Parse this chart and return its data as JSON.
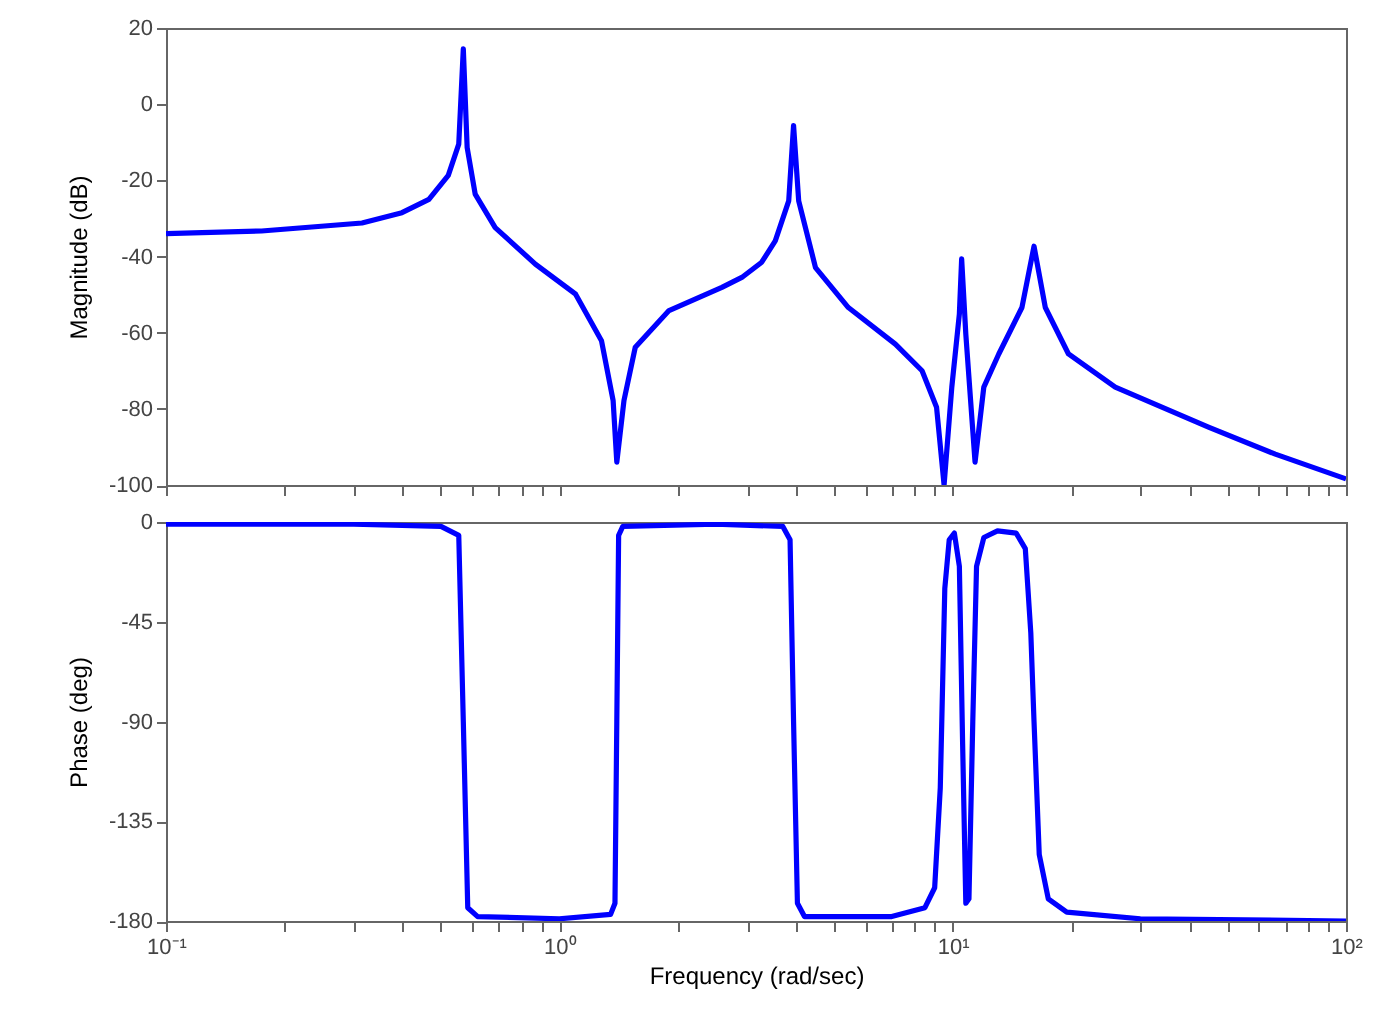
{
  "chart_data": [
    {
      "type": "line",
      "ylabel": "Magnitude (dB)",
      "color": "#0000ff",
      "log": "x",
      "tick_labels": "y",
      "xlim": [
        0.1,
        100
      ],
      "ylim": [
        -100,
        20
      ],
      "yticks": [
        -100,
        -80,
        -60,
        -40,
        -20,
        0,
        20
      ],
      "xticks": [
        {
          "value": 0.1,
          "label": null
        },
        {
          "value": 0.2,
          "label": null
        },
        {
          "value": 0.3,
          "label": null
        },
        {
          "value": 0.4,
          "label": null
        },
        {
          "value": 0.5,
          "label": null
        },
        {
          "value": 0.6,
          "label": null
        },
        {
          "value": 0.7,
          "label": null
        },
        {
          "value": 0.8,
          "label": null
        },
        {
          "value": 0.9,
          "label": null
        },
        {
          "value": 1,
          "label": null
        },
        {
          "value": 2,
          "label": null
        },
        {
          "value": 3,
          "label": null
        },
        {
          "value": 4,
          "label": null
        },
        {
          "value": 5,
          "label": null
        },
        {
          "value": 6,
          "label": null
        },
        {
          "value": 7,
          "label": null
        },
        {
          "value": 8,
          "label": null
        },
        {
          "value": 9,
          "label": null
        },
        {
          "value": 10,
          "label": null
        },
        {
          "value": 20,
          "label": null
        },
        {
          "value": 30,
          "label": null
        },
        {
          "value": 40,
          "label": null
        },
        {
          "value": 50,
          "label": null
        },
        {
          "value": 60,
          "label": null
        },
        {
          "value": 70,
          "label": null
        },
        {
          "value": 80,
          "label": null
        },
        {
          "value": 90,
          "label": null
        },
        {
          "value": 100,
          "label": null
        }
      ],
      "x": [
        0.1,
        0.175,
        0.315,
        0.398,
        0.466,
        0.522,
        0.555,
        0.57,
        0.583,
        0.611,
        0.687,
        0.869,
        1.1,
        1.28,
        1.37,
        1.4,
        1.46,
        1.56,
        1.9,
        2.59,
        2.91,
        3.27,
        3.54,
        3.83,
        3.94,
        4.06,
        4.48,
        5.43,
        7.15,
        8.36,
        9.1,
        9.51,
        9.95,
        10.4,
        10.54,
        10.8,
        11.4,
        12.0,
        13.1,
        15.0,
        16.1,
        17.2,
        19.7,
        25.9,
        44.7,
        66.1,
        100
      ],
      "values": [
        -34,
        -33.3,
        -31.2,
        -28.5,
        -25,
        -18.7,
        -10.5,
        14.5,
        -11.4,
        -23.6,
        -32.4,
        -42,
        -49.9,
        -62.1,
        -77.8,
        -94,
        -77.8,
        -63.8,
        -54.2,
        -48.1,
        -45.5,
        -41.5,
        -35.9,
        -25.4,
        -5.6,
        -25.4,
        -42.9,
        -53.4,
        -63,
        -70,
        -79.6,
        -100,
        -74.3,
        -55.1,
        -40.6,
        -60.4,
        -94,
        -74.3,
        -65.6,
        -53.4,
        -37.3,
        -53.4,
        -65.6,
        -74.3,
        -84.8,
        -91.9,
        -98.4
      ]
    },
    {
      "type": "line",
      "xlabel": "Frequency  (rad/sec)",
      "ylabel": "Phase (deg)",
      "color": "#0000ff",
      "log": "x",
      "xlim": [
        0.1,
        100
      ],
      "ylim": [
        -180,
        0
      ],
      "yticks": [
        -180,
        -135,
        -90,
        -45,
        0
      ],
      "xticks": [
        {
          "value": 0.1,
          "label": "10⁻¹"
        },
        {
          "value": 0.2,
          "label": null
        },
        {
          "value": 0.3,
          "label": null
        },
        {
          "value": 0.4,
          "label": null
        },
        {
          "value": 0.5,
          "label": null
        },
        {
          "value": 0.6,
          "label": null
        },
        {
          "value": 0.7,
          "label": null
        },
        {
          "value": 0.8,
          "label": null
        },
        {
          "value": 0.9,
          "label": null
        },
        {
          "value": 1,
          "label": "10⁰"
        },
        {
          "value": 2,
          "label": null
        },
        {
          "value": 3,
          "label": null
        },
        {
          "value": 4,
          "label": null
        },
        {
          "value": 5,
          "label": null
        },
        {
          "value": 6,
          "label": null
        },
        {
          "value": 7,
          "label": null
        },
        {
          "value": 8,
          "label": null
        },
        {
          "value": 9,
          "label": null
        },
        {
          "value": 10,
          "label": "10¹"
        },
        {
          "value": 20,
          "label": null
        },
        {
          "value": 30,
          "label": null
        },
        {
          "value": 40,
          "label": null
        },
        {
          "value": 50,
          "label": null
        },
        {
          "value": 60,
          "label": null
        },
        {
          "value": 70,
          "label": null
        },
        {
          "value": 80,
          "label": null
        },
        {
          "value": 90,
          "label": null
        },
        {
          "value": 100,
          "label": "10²"
        }
      ],
      "x": [
        0.1,
        0.3,
        0.5,
        0.555,
        0.57,
        0.585,
        0.62,
        1.0,
        1.35,
        1.385,
        1.4,
        1.415,
        1.45,
        2.5,
        3.7,
        3.86,
        3.94,
        4.03,
        4.2,
        7.0,
        8.5,
        9.0,
        9.3,
        9.55,
        9.8,
        10.1,
        10.4,
        10.6,
        10.8,
        11.0,
        11.25,
        11.5,
        12.0,
        13.0,
        14.5,
        15.3,
        15.8,
        16.1,
        16.6,
        17.5,
        19.5,
        30,
        100
      ],
      "values": [
        -1,
        -1,
        -2,
        -6,
        -90,
        -174,
        -178,
        -179,
        -177,
        -172,
        -90,
        -6,
        -2,
        -1,
        -2,
        -8,
        -90,
        -172,
        -178,
        -178,
        -174,
        -165,
        -120,
        -30,
        -8,
        -5,
        -20,
        -100,
        -172,
        -170,
        -90,
        -20,
        -7,
        -4,
        -5,
        -12,
        -50,
        -90,
        -150,
        -170,
        -176,
        -179,
        -180
      ]
    }
  ]
}
